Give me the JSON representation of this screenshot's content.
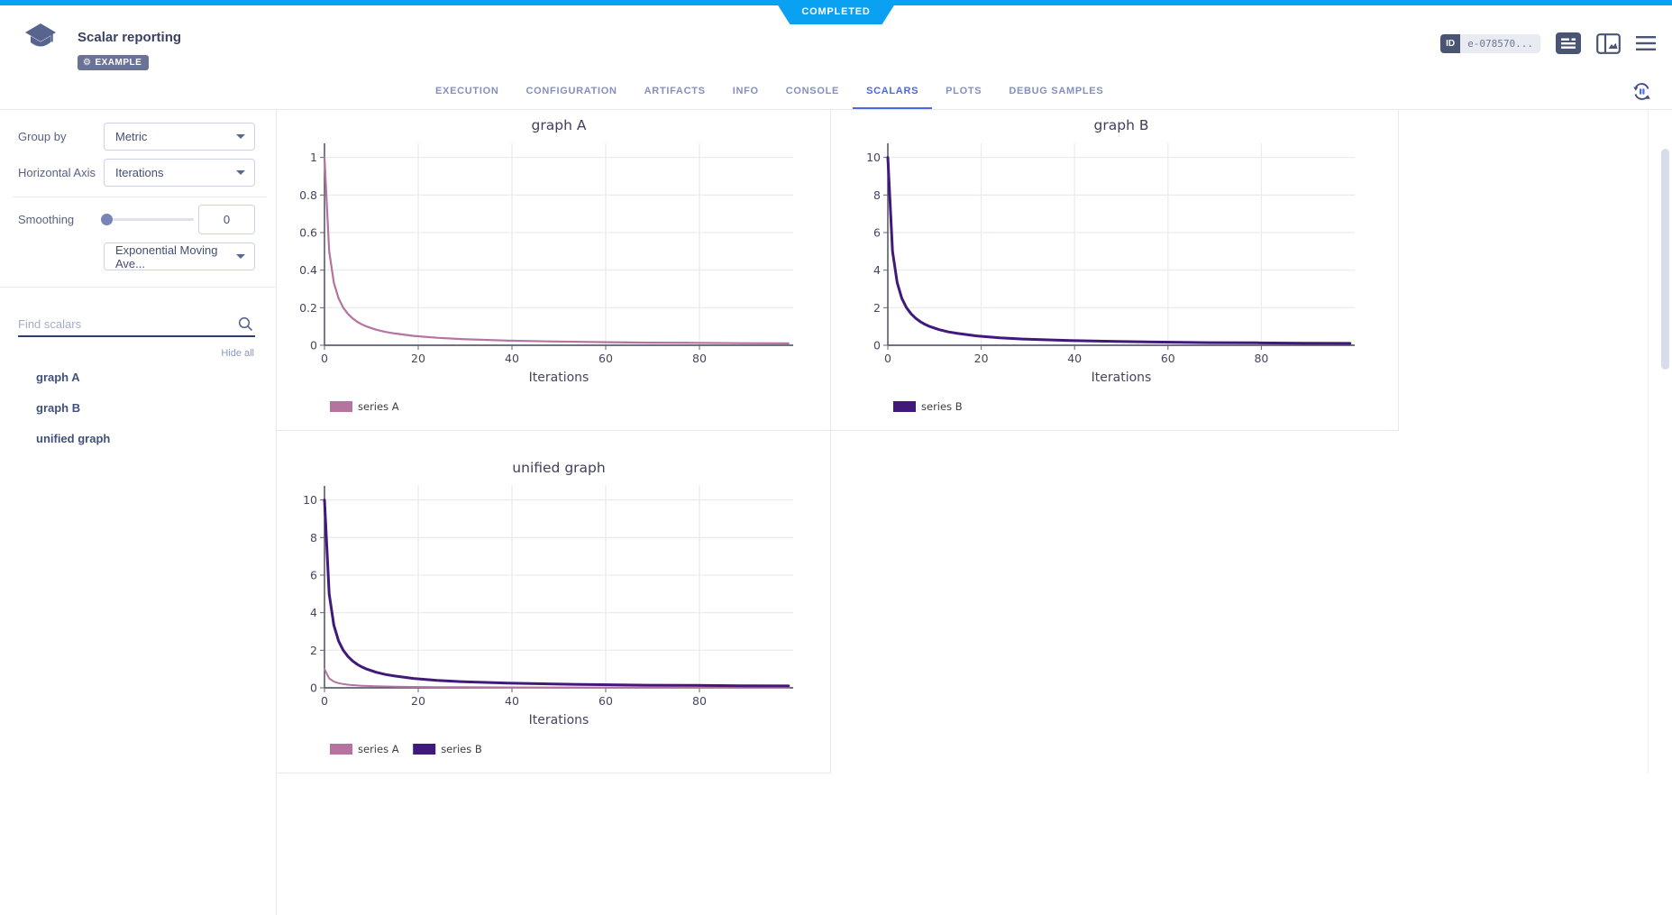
{
  "header": {
    "status": "COMPLETED",
    "title": "Scalar reporting",
    "badge": "EXAMPLE",
    "id_label": "ID",
    "id_value": "e-078570..."
  },
  "icons": {
    "gear": "⚙"
  },
  "tabs": {
    "items": [
      {
        "label": "EXECUTION",
        "active": false
      },
      {
        "label": "CONFIGURATION",
        "active": false
      },
      {
        "label": "ARTIFACTS",
        "active": false
      },
      {
        "label": "INFO",
        "active": false
      },
      {
        "label": "CONSOLE",
        "active": false
      },
      {
        "label": "SCALARS",
        "active": true
      },
      {
        "label": "PLOTS",
        "active": false
      },
      {
        "label": "DEBUG SAMPLES",
        "active": false
      }
    ]
  },
  "sidebar": {
    "group_by_label": "Group by",
    "group_by_value": "Metric",
    "horizontal_axis_label": "Horizontal Axis",
    "horizontal_axis_value": "Iterations",
    "smoothing_label": "Smoothing",
    "smoothing_value": "0",
    "smoothing_method": "Exponential Moving Ave...",
    "search_placeholder": "Find scalars",
    "hide_all_label": "Hide all",
    "scalars": [
      "graph A",
      "graph B",
      "unified graph"
    ]
  },
  "colors": {
    "accent_blue": "#0ba1f2",
    "tab_active": "#4d66e8",
    "series_a": "#b5739f",
    "series_b": "#41197b",
    "axis": "#42435a",
    "grid": "#ebecf2"
  },
  "chart_data": [
    {
      "type": "line",
      "title": "graph A",
      "xlabel": "Iterations",
      "xlim": [
        0,
        100
      ],
      "ylim": [
        0,
        1.075
      ],
      "x_ticks": [
        0,
        20,
        40,
        60,
        80
      ],
      "y_ticks": [
        0,
        0.2,
        0.4,
        0.6,
        0.8,
        1
      ],
      "grid": true,
      "legend_position": "bottom-left",
      "series": [
        {
          "name": "series A",
          "color": "#b5739f",
          "line_width": 2.2,
          "x": [
            0,
            1,
            2,
            3,
            4,
            5,
            6,
            7,
            8,
            9,
            11,
            13,
            15,
            19,
            24,
            29,
            39,
            49,
            59,
            69,
            79,
            89,
            99
          ],
          "y": [
            1,
            0.5,
            0.333,
            0.25,
            0.2,
            0.167,
            0.143,
            0.125,
            0.111,
            0.1,
            0.083,
            0.071,
            0.063,
            0.05,
            0.04,
            0.033,
            0.025,
            0.02,
            0.017,
            0.014,
            0.013,
            0.011,
            0.01
          ]
        }
      ]
    },
    {
      "type": "line",
      "title": "graph B",
      "xlabel": "Iterations",
      "xlim": [
        0,
        100
      ],
      "ylim": [
        0,
        10.75
      ],
      "x_ticks": [
        0,
        20,
        40,
        60,
        80
      ],
      "y_ticks": [
        0,
        2,
        4,
        6,
        8,
        10
      ],
      "grid": true,
      "legend_position": "bottom-left",
      "series": [
        {
          "name": "series B",
          "color": "#41197b",
          "line_width": 3,
          "x": [
            0,
            1,
            2,
            3,
            4,
            5,
            6,
            7,
            8,
            9,
            11,
            13,
            15,
            19,
            24,
            29,
            39,
            49,
            59,
            69,
            79,
            89,
            99
          ],
          "y": [
            10,
            5,
            3.33,
            2.5,
            2,
            1.67,
            1.43,
            1.25,
            1.11,
            1,
            0.83,
            0.71,
            0.63,
            0.5,
            0.4,
            0.33,
            0.25,
            0.2,
            0.17,
            0.14,
            0.13,
            0.11,
            0.1
          ]
        }
      ]
    },
    {
      "type": "line",
      "title": "unified graph",
      "xlabel": "Iterations",
      "xlim": [
        0,
        100
      ],
      "ylim": [
        0,
        10.75
      ],
      "x_ticks": [
        0,
        20,
        40,
        60,
        80
      ],
      "y_ticks": [
        0,
        2,
        4,
        6,
        8,
        10
      ],
      "grid": true,
      "legend_position": "bottom-left",
      "series": [
        {
          "name": "series A",
          "color": "#b5739f",
          "line_width": 2,
          "x": [
            0,
            1,
            2,
            3,
            4,
            5,
            6,
            7,
            8,
            9,
            11,
            13,
            15,
            19,
            24,
            29,
            39,
            49,
            59,
            69,
            79,
            89,
            99
          ],
          "y": [
            1,
            0.5,
            0.333,
            0.25,
            0.2,
            0.167,
            0.143,
            0.125,
            0.111,
            0.1,
            0.083,
            0.071,
            0.063,
            0.05,
            0.04,
            0.033,
            0.025,
            0.02,
            0.017,
            0.014,
            0.013,
            0.011,
            0.01
          ]
        },
        {
          "name": "series B",
          "color": "#41197b",
          "line_width": 3,
          "x": [
            0,
            1,
            2,
            3,
            4,
            5,
            6,
            7,
            8,
            9,
            11,
            13,
            15,
            19,
            24,
            29,
            39,
            49,
            59,
            69,
            79,
            89,
            99
          ],
          "y": [
            10,
            5,
            3.33,
            2.5,
            2,
            1.67,
            1.43,
            1.25,
            1.11,
            1,
            0.83,
            0.71,
            0.63,
            0.5,
            0.4,
            0.33,
            0.25,
            0.2,
            0.17,
            0.14,
            0.13,
            0.11,
            0.1
          ]
        }
      ]
    }
  ]
}
